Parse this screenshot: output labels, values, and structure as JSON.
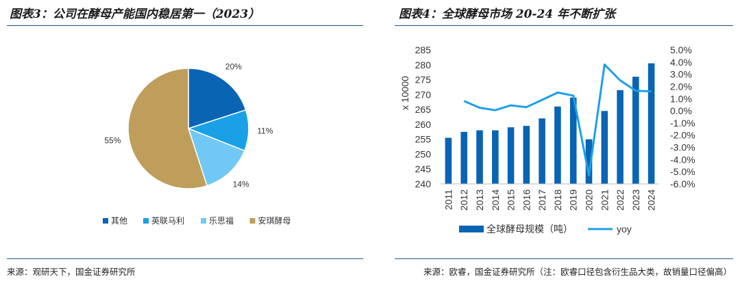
{
  "left_figure": {
    "title": "图表3：公司在酵母产能国内稳居第一（2023）",
    "source": "来源：观研天下，国金证券研究所"
  },
  "right_figure": {
    "title": "图表4：全球酵母市场 20-24 年不断扩张",
    "source": "来源：欧睿，国金证券研究所（注：欧睿口径包含衍生品大类，故销量口径偏高）"
  },
  "chart_data": [
    {
      "type": "pie",
      "title": "",
      "labels": [
        "其他",
        "英联马利",
        "乐思福",
        "安琪酵母"
      ],
      "values": [
        20,
        11,
        14,
        55
      ],
      "value_labels": [
        "20%",
        "11%",
        "14%",
        "55%"
      ],
      "colors": [
        "#0a64b4",
        "#1aa0e6",
        "#70c8f5",
        "#bf9e5c"
      ],
      "legend": "bottom"
    },
    {
      "type": "bar+line",
      "title": "",
      "categories": [
        "2011",
        "2012",
        "2013",
        "2014",
        "2015",
        "2016",
        "2017",
        "2018",
        "2019",
        "2020",
        "2021",
        "2022",
        "2023",
        "2024"
      ],
      "series": [
        {
          "name": "全球酵母规模（吨）",
          "type": "bar",
          "axis": "left",
          "color": "#0a64b4",
          "values": [
            255.5,
            257.5,
            258,
            258,
            259,
            259.5,
            262,
            266,
            269,
            255,
            264.5,
            271.5,
            276,
            280.5
          ]
        },
        {
          "name": "yoy",
          "type": "line",
          "axis": "right",
          "color": "#1aa0e6",
          "values": [
            null,
            0.8,
            0.25,
            0.05,
            0.45,
            0.3,
            0.9,
            1.5,
            1.25,
            -5.3,
            3.8,
            2.5,
            1.65,
            1.6
          ]
        }
      ],
      "y_left": {
        "label": "x 10000",
        "ylim": [
          240,
          285
        ],
        "ticks": [
          "240",
          "245",
          "250",
          "255",
          "260",
          "265",
          "270",
          "275",
          "280",
          "285"
        ]
      },
      "y_right": {
        "ylim": [
          -6.0,
          5.0
        ],
        "ticks": [
          "-6.0%",
          "-5.0%",
          "-4.0%",
          "-3.0%",
          "-2.0%",
          "-1.0%",
          "0.0%",
          "1.0%",
          "2.0%",
          "3.0%",
          "4.0%",
          "5.0%"
        ]
      },
      "legend": "bottom"
    }
  ]
}
